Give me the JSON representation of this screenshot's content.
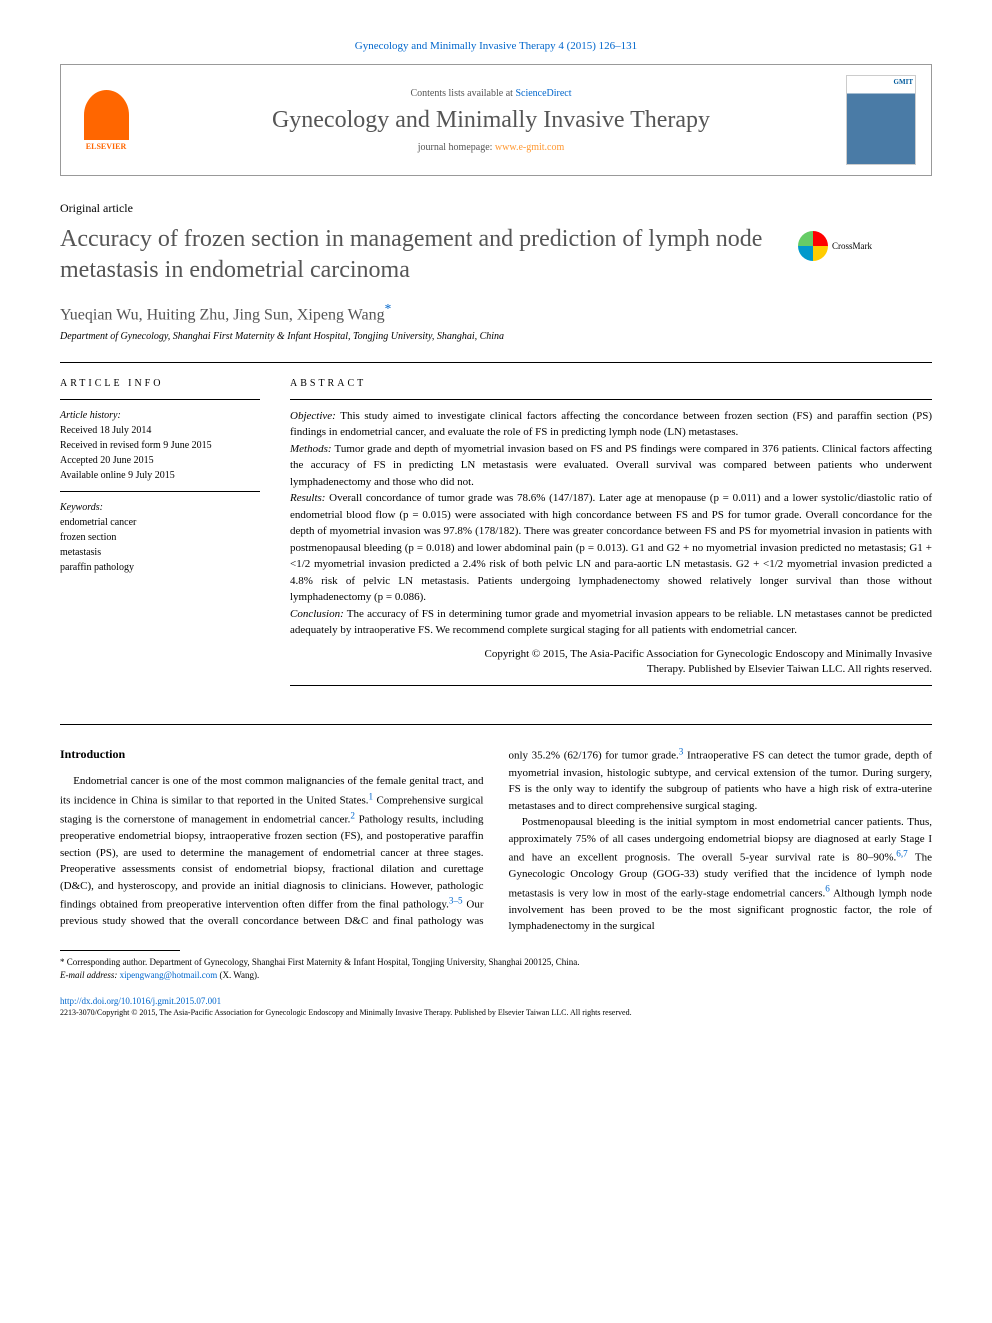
{
  "citation": "Gynecology and Minimally Invasive Therapy 4 (2015) 126–131",
  "header": {
    "publisher": "ELSEVIER",
    "contents_prefix": "Contents lists available at ",
    "contents_link": "ScienceDirect",
    "journal_name": "Gynecology and Minimally Invasive Therapy",
    "homepage_prefix": "journal homepage: ",
    "homepage_link": "www.e-gmit.com",
    "cover_label": "GMIT"
  },
  "crossmark": {
    "label": "CrossMark"
  },
  "article": {
    "type": "Original article",
    "title": "Accuracy of frozen section in management and prediction of lymph node metastasis in endometrial carcinoma",
    "authors": "Yueqian Wu, Huiting Zhu, Jing Sun, Xipeng Wang",
    "corr_mark": "*",
    "affiliation": "Department of Gynecology, Shanghai First Maternity & Infant Hospital, Tongjing University, Shanghai, China"
  },
  "info": {
    "heading": "ARTICLE INFO",
    "history_label": "Article history:",
    "received": "Received 18 July 2014",
    "revised": "Received in revised form 9 June 2015",
    "accepted": "Accepted 20 June 2015",
    "online": "Available online 9 July 2015",
    "keywords_label": "Keywords:",
    "kw1": "endometrial cancer",
    "kw2": "frozen section",
    "kw3": "metastasis",
    "kw4": "paraffin pathology"
  },
  "abstract": {
    "heading": "ABSTRACT",
    "objective_label": "Objective:",
    "objective": " This study aimed to investigate clinical factors affecting the concordance between frozen section (FS) and paraffin section (PS) findings in endometrial cancer, and evaluate the role of FS in predicting lymph node (LN) metastases.",
    "methods_label": "Methods:",
    "methods": " Tumor grade and depth of myometrial invasion based on FS and PS findings were compared in 376 patients. Clinical factors affecting the accuracy of FS in predicting LN metastasis were evaluated. Overall survival was compared between patients who underwent lymphadenectomy and those who did not.",
    "results_label": "Results:",
    "results": " Overall concordance of tumor grade was 78.6% (147/187). Later age at menopause (p = 0.011) and a lower systolic/diastolic ratio of endometrial blood flow (p = 0.015) were associated with high concordance between FS and PS for tumor grade. Overall concordance for the depth of myometrial invasion was 97.8% (178/182). There was greater concordance between FS and PS for myometrial invasion in patients with postmenopausal bleeding (p = 0.018) and lower abdominal pain (p = 0.013). G1 and G2 + no myometrial invasion predicted no metastasis; G1 + <1/2 myometrial invasion predicted a 2.4% risk of both pelvic LN and para-aortic LN metastasis. G2 + <1/2 myometrial invasion predicted a 4.8% risk of pelvic LN metastasis. Patients undergoing lymphadenectomy showed relatively longer survival than those without lymphadenectomy (p = 0.086).",
    "conclusion_label": "Conclusion:",
    "conclusion": " The accuracy of FS in determining tumor grade and myometrial invasion appears to be reliable. LN metastases cannot be predicted adequately by intraoperative FS. We recommend complete surgical staging for all patients with endometrial cancer.",
    "copyright1": "Copyright © 2015, The Asia-Pacific Association for Gynecologic Endoscopy and Minimally Invasive",
    "copyright2": "Therapy. Published by Elsevier Taiwan LLC. All rights reserved."
  },
  "body": {
    "intro_heading": "Introduction",
    "p1a": "Endometrial cancer is one of the most common malignancies of the female genital tract, and its incidence in China is similar to that reported in the United States.",
    "ref1": "1",
    "p1b": " Comprehensive surgical staging is the cornerstone of management in endometrial cancer.",
    "ref2": "2",
    "p1c": " Pathology results, including preoperative endometrial biopsy, intraoperative frozen section (FS), and postoperative paraffin section (PS), are used to determine the management of endometrial cancer at three stages. Preoperative assessments consist of endometrial biopsy, fractional dilation and curettage (D&C), and hysteroscopy, and provide an initial diagnosis to clinicians. However, pathologic findings obtained from preoperative intervention often differ from the final pathology.",
    "ref35": "3–5",
    "p1d": " Our previous study showed that the overall concordance between D&C and final pathology was only 35.2% (62/176) for tumor grade.",
    "ref3": "3",
    "p1e": " Intraoperative FS can detect the tumor grade, depth of myometrial invasion, histologic subtype, and cervical extension of the tumor. During surgery, FS is the only way to identify the subgroup of patients who have a high risk of extra-uterine metastases and to direct comprehensive surgical staging.",
    "p2a": "Postmenopausal bleeding is the initial symptom in most endometrial cancer patients. Thus, approximately 75% of all cases undergoing endometrial biopsy are diagnosed at early Stage I and have an excellent prognosis. The overall 5-year survival rate is 80–90%.",
    "ref67": "6,7",
    "p2b": " The Gynecologic Oncology Group (GOG-33) study verified that the incidence of lymph node metastasis is very low in most of the early-stage endometrial cancers.",
    "ref6": "6",
    "p2c": " Although lymph node involvement has been proved to be the most significant prognostic factor, the role of lymphadenectomy in the surgical"
  },
  "footnotes": {
    "corr": "* Corresponding author. Department of Gynecology, Shanghai First Maternity & Infant Hospital, Tongjing University, Shanghai 200125, China.",
    "email_label": "E-mail address: ",
    "email": "xipengwang@hotmail.com",
    "email_suffix": " (X. Wang)."
  },
  "footer": {
    "doi": "http://dx.doi.org/10.1016/j.gmit.2015.07.001",
    "issn": "2213-3070/Copyright © 2015, The Asia-Pacific Association for Gynecologic Endoscopy and Minimally Invasive Therapy. Published by Elsevier Taiwan LLC. All rights reserved."
  }
}
